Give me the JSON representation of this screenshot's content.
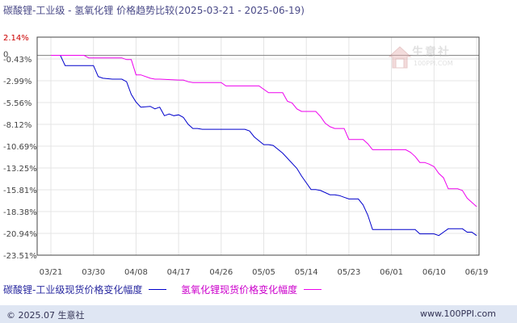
{
  "title": "碳酸锂-工业级 - 氢氧化锂 价格趋势比较(2025-03-21 - 2025-06-19)",
  "footer": {
    "left": "© 2025.07 生意社",
    "right": "www.100PPI.com"
  },
  "watermark": {
    "text": "生意社",
    "url": "100PPI.COM"
  },
  "chart_data": {
    "type": "line",
    "title": "碳酸锂-工业级 - 氢氧化锂 价格趋势比较(2025-03-21 - 2025-06-19)",
    "y_ticks": [
      "2.14%",
      "-0.43%",
      "-2.99%",
      "-5.56%",
      "-8.12%",
      "-10.69%",
      "-13.25%",
      "-15.81%",
      "-18.38%",
      "-20.94%",
      "-23.51%"
    ],
    "y_tick_values": [
      2.14,
      -0.43,
      -2.99,
      -5.56,
      -8.12,
      -10.69,
      -13.25,
      -15.81,
      -18.38,
      -20.94,
      -23.51
    ],
    "zero_label": "0",
    "ylim": [
      -23.51,
      2.14
    ],
    "x_ticks": [
      "03/21",
      "03/30",
      "04/08",
      "04/17",
      "04/26",
      "05/05",
      "05/14",
      "05/23",
      "06/01",
      "06/10",
      "06/19"
    ],
    "xlim": [
      "03/21",
      "06/19"
    ],
    "grid": true,
    "legend_position": "bottom",
    "series": [
      {
        "name": "碳酸锂-工业级现货价格变化幅度",
        "color": "#0000cc",
        "x": [
          "03/21",
          "03/23",
          "03/24",
          "03/30",
          "03/31",
          "04/01",
          "04/03",
          "04/05",
          "04/06",
          "04/07",
          "04/08",
          "04/09",
          "04/11",
          "04/12",
          "04/13",
          "04/14",
          "04/15",
          "04/16",
          "04/17",
          "04/18",
          "04/19",
          "04/20",
          "04/21",
          "04/22",
          "04/24",
          "04/26",
          "05/01",
          "05/02",
          "05/03",
          "05/05",
          "05/06",
          "05/07",
          "05/09",
          "05/12",
          "05/13",
          "05/14",
          "05/15",
          "05/16",
          "05/17",
          "05/19",
          "05/20",
          "05/21",
          "05/22",
          "05/23",
          "05/25",
          "05/26",
          "05/27",
          "05/28",
          "06/02",
          "06/03",
          "06/06",
          "06/07",
          "06/08",
          "06/09",
          "06/10",
          "06/11",
          "06/12",
          "06/13",
          "06/16",
          "06/17",
          "06/18",
          "06/19"
        ],
        "y": [
          0,
          0,
          -1.2,
          -1.2,
          -2.5,
          -2.7,
          -2.8,
          -2.8,
          -3.1,
          -4.6,
          -5.5,
          -6.1,
          -6.0,
          -6.3,
          -6.1,
          -7.1,
          -6.9,
          -7.1,
          -7.0,
          -7.3,
          -8.1,
          -8.6,
          -8.6,
          -8.7,
          -8.7,
          -8.7,
          -8.7,
          -8.9,
          -9.6,
          -10.5,
          -10.5,
          -10.6,
          -11.5,
          -13.3,
          -14.2,
          -15.0,
          -15.8,
          -15.8,
          -15.9,
          -16.4,
          -16.4,
          -16.5,
          -16.7,
          -16.9,
          -16.9,
          -17.6,
          -18.8,
          -20.5,
          -20.5,
          -20.5,
          -20.5,
          -21.0,
          -21.0,
          -21.0,
          -21.0,
          -21.2,
          -20.8,
          -20.4,
          -20.4,
          -20.8,
          -20.8,
          -21.2
        ]
      },
      {
        "name": "氢氧化锂现货价格变化幅度",
        "color": "#ee00ee",
        "x": [
          "03/21",
          "03/28",
          "03/29",
          "04/05",
          "04/06",
          "04/07",
          "04/08",
          "04/09",
          "04/11",
          "04/12",
          "04/13",
          "04/17",
          "04/18",
          "04/19",
          "04/20",
          "04/26",
          "04/27",
          "05/04",
          "05/06",
          "05/09",
          "05/10",
          "05/11",
          "05/12",
          "05/13",
          "05/16",
          "05/17",
          "05/18",
          "05/19",
          "05/20",
          "05/22",
          "05/23",
          "05/26",
          "05/27",
          "05/28",
          "06/04",
          "06/05",
          "06/06",
          "06/07",
          "06/08",
          "06/09",
          "06/10",
          "06/11",
          "06/12",
          "06/13",
          "06/15",
          "06/16",
          "06/17",
          "06/18",
          "06/19"
        ],
        "y": [
          0,
          0,
          -0.3,
          -0.3,
          -0.5,
          -0.5,
          -2.3,
          -2.3,
          -2.7,
          -2.8,
          -2.8,
          -2.9,
          -2.9,
          -3.1,
          -3.2,
          -3.2,
          -3.6,
          -3.6,
          -4.4,
          -4.4,
          -5.4,
          -5.6,
          -6.3,
          -6.6,
          -6.6,
          -7.2,
          -8.0,
          -8.4,
          -8.6,
          -8.6,
          -9.9,
          -9.9,
          -10.4,
          -11.1,
          -11.1,
          -11.4,
          -11.9,
          -12.6,
          -12.6,
          -12.8,
          -13.1,
          -13.9,
          -14.4,
          -15.7,
          -15.7,
          -15.9,
          -16.8,
          -17.3,
          -17.8
        ]
      }
    ]
  }
}
